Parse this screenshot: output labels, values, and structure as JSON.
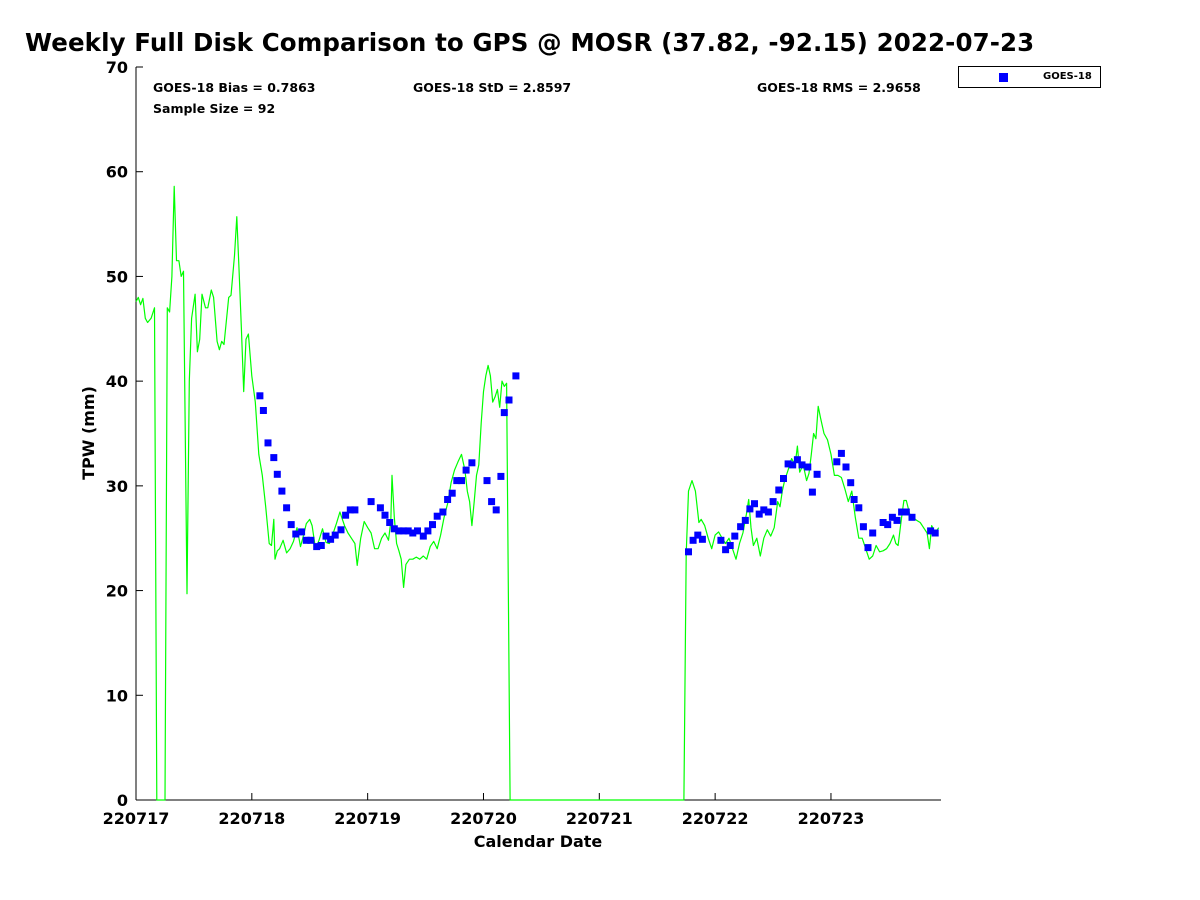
{
  "chart_data": {
    "type": "scatter",
    "title": "Weekly Full Disk Comparison to GPS @ MOSR (37.82, -92.15) 2022-07-23",
    "xlabel": "Calendar Date",
    "ylabel": "TPW (mm)",
    "xlim": [
      0,
      6.95
    ],
    "ylim": [
      0,
      70
    ],
    "x_ticks": [
      0,
      1,
      2,
      3,
      4,
      5,
      6
    ],
    "x_tick_labels": [
      "220717",
      "220718",
      "220719",
      "220720",
      "220721",
      "220722",
      "220723"
    ],
    "y_ticks": [
      0,
      10,
      20,
      30,
      40,
      50,
      60,
      70
    ],
    "y_tick_labels": [
      "0",
      "10",
      "20",
      "30",
      "40",
      "50",
      "60",
      "70"
    ],
    "stats": {
      "bias": "GOES-18 Bias = 0.7863",
      "std": "GOES-18 StD = 2.8597",
      "rms": "GOES-18 RMS = 2.9658",
      "sample_size": "Sample Size = 92"
    },
    "legend": {
      "label": "GOES-18",
      "marker_color": "#0000ff",
      "placement": "top-right outside"
    },
    "series": [
      {
        "name": "GPS",
        "style": "line",
        "color": "#00ff00",
        "points": [
          [
            0.0,
            47.6
          ],
          [
            0.02,
            48.0
          ],
          [
            0.04,
            47.3
          ],
          [
            0.06,
            47.9
          ],
          [
            0.08,
            46.0
          ],
          [
            0.1,
            45.6
          ],
          [
            0.13,
            46.0
          ],
          [
            0.16,
            47.0
          ],
          [
            0.18,
            0
          ],
          [
            0.25,
            0
          ],
          [
            0.27,
            47.0
          ],
          [
            0.29,
            46.6
          ],
          [
            0.31,
            50.0
          ],
          [
            0.33,
            58.6
          ],
          [
            0.35,
            51.5
          ],
          [
            0.37,
            51.5
          ],
          [
            0.39,
            50.0
          ],
          [
            0.41,
            50.5
          ],
          [
            0.44,
            19.7
          ],
          [
            0.46,
            40.0
          ],
          [
            0.48,
            46.0
          ],
          [
            0.51,
            48.3
          ],
          [
            0.53,
            42.8
          ],
          [
            0.55,
            44.0
          ],
          [
            0.57,
            48.3
          ],
          [
            0.6,
            47.0
          ],
          [
            0.62,
            47.0
          ],
          [
            0.65,
            48.7
          ],
          [
            0.67,
            48.0
          ],
          [
            0.7,
            43.8
          ],
          [
            0.72,
            43.0
          ],
          [
            0.74,
            43.8
          ],
          [
            0.76,
            43.5
          ],
          [
            0.8,
            48.0
          ],
          [
            0.82,
            48.2
          ],
          [
            0.85,
            52.0
          ],
          [
            0.87,
            55.7
          ],
          [
            0.89,
            50.5
          ],
          [
            0.91,
            45.0
          ],
          [
            0.93,
            39.0
          ],
          [
            0.95,
            44.0
          ],
          [
            0.97,
            44.5
          ],
          [
            1.0,
            40.5
          ],
          [
            1.03,
            38.0
          ],
          [
            1.06,
            33.0
          ],
          [
            1.09,
            31.0
          ],
          [
            1.12,
            28.0
          ],
          [
            1.15,
            24.5
          ],
          [
            1.17,
            24.3
          ],
          [
            1.19,
            26.8
          ],
          [
            1.2,
            23.0
          ],
          [
            1.22,
            23.8
          ],
          [
            1.24,
            24.0
          ],
          [
            1.27,
            24.8
          ],
          [
            1.3,
            23.6
          ],
          [
            1.33,
            24.0
          ],
          [
            1.36,
            24.7
          ],
          [
            1.39,
            26.0
          ],
          [
            1.42,
            24.2
          ],
          [
            1.44,
            25.0
          ],
          [
            1.47,
            26.4
          ],
          [
            1.5,
            26.8
          ],
          [
            1.52,
            26.2
          ],
          [
            1.55,
            24.0
          ],
          [
            1.58,
            24.8
          ],
          [
            1.61,
            25.9
          ],
          [
            1.64,
            24.6
          ],
          [
            1.67,
            24.5
          ],
          [
            1.7,
            25.4
          ],
          [
            1.73,
            26.4
          ],
          [
            1.76,
            27.5
          ],
          [
            1.8,
            26.2
          ],
          [
            1.83,
            25.5
          ],
          [
            1.86,
            25.0
          ],
          [
            1.89,
            24.5
          ],
          [
            1.91,
            22.4
          ],
          [
            1.94,
            25.0
          ],
          [
            1.97,
            26.6
          ],
          [
            2.0,
            26.0
          ],
          [
            2.03,
            25.5
          ],
          [
            2.06,
            24.0
          ],
          [
            2.09,
            24.0
          ],
          [
            2.12,
            25.0
          ],
          [
            2.15,
            25.5
          ],
          [
            2.18,
            24.8
          ],
          [
            2.2,
            26.6
          ],
          [
            2.21,
            31.0
          ],
          [
            2.23,
            27.0
          ],
          [
            2.25,
            24.5
          ],
          [
            2.27,
            23.8
          ],
          [
            2.29,
            23.0
          ],
          [
            2.31,
            20.3
          ],
          [
            2.33,
            22.5
          ],
          [
            2.36,
            23.0
          ],
          [
            2.39,
            23.0
          ],
          [
            2.42,
            23.2
          ],
          [
            2.45,
            23.0
          ],
          [
            2.48,
            23.3
          ],
          [
            2.51,
            23.0
          ],
          [
            2.54,
            24.2
          ],
          [
            2.57,
            24.7
          ],
          [
            2.6,
            24.0
          ],
          [
            2.63,
            25.3
          ],
          [
            2.66,
            27.0
          ],
          [
            2.69,
            28.3
          ],
          [
            2.72,
            30.3
          ],
          [
            2.75,
            31.5
          ],
          [
            2.78,
            32.3
          ],
          [
            2.81,
            33.0
          ],
          [
            2.84,
            31.5
          ],
          [
            2.86,
            29.5
          ],
          [
            2.88,
            28.5
          ],
          [
            2.9,
            26.2
          ],
          [
            2.92,
            28.5
          ],
          [
            2.94,
            31.0
          ],
          [
            2.96,
            32.0
          ],
          [
            2.98,
            36.0
          ],
          [
            3.0,
            39.0
          ],
          [
            3.02,
            40.5
          ],
          [
            3.04,
            41.5
          ],
          [
            3.06,
            40.5
          ],
          [
            3.08,
            38.0
          ],
          [
            3.1,
            38.5
          ],
          [
            3.12,
            39.2
          ],
          [
            3.14,
            37.5
          ],
          [
            3.16,
            40.0
          ],
          [
            3.18,
            39.5
          ],
          [
            3.2,
            39.8
          ],
          [
            3.23,
            0
          ],
          [
            4.73,
            0
          ],
          [
            4.75,
            23.5
          ],
          [
            4.77,
            29.5
          ],
          [
            4.8,
            30.5
          ],
          [
            4.83,
            29.5
          ],
          [
            4.86,
            26.5
          ],
          [
            4.88,
            26.8
          ],
          [
            4.91,
            26.2
          ],
          [
            4.94,
            25.0
          ],
          [
            4.97,
            24.0
          ],
          [
            5.0,
            25.3
          ],
          [
            5.03,
            25.6
          ],
          [
            5.06,
            25.0
          ],
          [
            5.09,
            24.5
          ],
          [
            5.12,
            25.0
          ],
          [
            5.15,
            24.0
          ],
          [
            5.18,
            23.0
          ],
          [
            5.21,
            24.5
          ],
          [
            5.24,
            25.5
          ],
          [
            5.27,
            27.3
          ],
          [
            5.29,
            28.7
          ],
          [
            5.31,
            26.0
          ],
          [
            5.33,
            24.3
          ],
          [
            5.36,
            25.0
          ],
          [
            5.39,
            23.3
          ],
          [
            5.42,
            25.0
          ],
          [
            5.45,
            25.8
          ],
          [
            5.48,
            25.2
          ],
          [
            5.51,
            26.0
          ],
          [
            5.54,
            28.5
          ],
          [
            5.56,
            28.0
          ],
          [
            5.58,
            29.5
          ],
          [
            5.6,
            30.5
          ],
          [
            5.63,
            31.5
          ],
          [
            5.66,
            32.6
          ],
          [
            5.69,
            32.0
          ],
          [
            5.71,
            33.8
          ],
          [
            5.73,
            31.3
          ],
          [
            5.76,
            32.0
          ],
          [
            5.79,
            30.5
          ],
          [
            5.81,
            31.2
          ],
          [
            5.83,
            33.0
          ],
          [
            5.85,
            35.0
          ],
          [
            5.87,
            34.5
          ],
          [
            5.89,
            37.6
          ],
          [
            5.91,
            36.5
          ],
          [
            5.94,
            35.0
          ],
          [
            5.97,
            34.4
          ],
          [
            6.0,
            33.0
          ],
          [
            6.03,
            31.0
          ],
          [
            6.06,
            31.0
          ],
          [
            6.09,
            30.8
          ],
          [
            6.12,
            29.7
          ],
          [
            6.15,
            28.5
          ],
          [
            6.18,
            29.5
          ],
          [
            6.21,
            27.0
          ],
          [
            6.24,
            25.0
          ],
          [
            6.27,
            25.0
          ],
          [
            6.3,
            24.0
          ],
          [
            6.33,
            23.0
          ],
          [
            6.36,
            23.3
          ],
          [
            6.39,
            24.3
          ],
          [
            6.42,
            23.7
          ],
          [
            6.45,
            23.8
          ],
          [
            6.48,
            24.0
          ],
          [
            6.51,
            24.5
          ],
          [
            6.54,
            25.3
          ],
          [
            6.56,
            24.5
          ],
          [
            6.58,
            24.3
          ],
          [
            6.61,
            27.0
          ],
          [
            6.63,
            28.6
          ],
          [
            6.65,
            28.6
          ],
          [
            6.68,
            27.3
          ],
          [
            6.71,
            27.0
          ],
          [
            6.74,
            26.7
          ],
          [
            6.77,
            26.5
          ],
          [
            6.8,
            26.0
          ],
          [
            6.83,
            25.5
          ],
          [
            6.85,
            24.0
          ],
          [
            6.87,
            26.2
          ],
          [
            6.9,
            25.5
          ],
          [
            6.93,
            26.0
          ]
        ]
      },
      {
        "name": "GOES-18",
        "style": "markers",
        "color": "#0000ff",
        "points": [
          [
            1.07,
            38.6
          ],
          [
            1.1,
            37.2
          ],
          [
            1.14,
            34.1
          ],
          [
            1.19,
            32.7
          ],
          [
            1.22,
            31.1
          ],
          [
            1.26,
            29.5
          ],
          [
            1.3,
            27.9
          ],
          [
            1.34,
            26.3
          ],
          [
            1.38,
            25.4
          ],
          [
            1.43,
            25.6
          ],
          [
            1.47,
            24.8
          ],
          [
            1.51,
            24.8
          ],
          [
            1.56,
            24.2
          ],
          [
            1.6,
            24.3
          ],
          [
            1.64,
            25.2
          ],
          [
            1.68,
            24.9
          ],
          [
            1.72,
            25.3
          ],
          [
            1.77,
            25.8
          ],
          [
            1.81,
            27.2
          ],
          [
            1.85,
            27.7
          ],
          [
            1.89,
            27.7
          ],
          [
            2.03,
            28.5
          ],
          [
            2.11,
            27.9
          ],
          [
            2.15,
            27.2
          ],
          [
            2.19,
            26.5
          ],
          [
            2.23,
            25.9
          ],
          [
            2.27,
            25.7
          ],
          [
            2.31,
            25.7
          ],
          [
            2.35,
            25.7
          ],
          [
            2.39,
            25.5
          ],
          [
            2.43,
            25.7
          ],
          [
            2.48,
            25.2
          ],
          [
            2.52,
            25.7
          ],
          [
            2.56,
            26.3
          ],
          [
            2.6,
            27.1
          ],
          [
            2.65,
            27.5
          ],
          [
            2.69,
            28.7
          ],
          [
            2.73,
            29.3
          ],
          [
            2.77,
            30.5
          ],
          [
            2.81,
            30.5
          ],
          [
            2.85,
            31.5
          ],
          [
            2.9,
            32.2
          ],
          [
            3.03,
            30.5
          ],
          [
            3.07,
            28.5
          ],
          [
            3.11,
            27.7
          ],
          [
            3.15,
            30.9
          ],
          [
            3.18,
            37.0
          ],
          [
            3.22,
            38.2
          ],
          [
            3.28,
            40.5
          ],
          [
            4.77,
            23.7
          ],
          [
            4.81,
            24.8
          ],
          [
            4.85,
            25.3
          ],
          [
            4.89,
            24.9
          ],
          [
            5.05,
            24.8
          ],
          [
            5.09,
            23.9
          ],
          [
            5.13,
            24.3
          ],
          [
            5.17,
            25.2
          ],
          [
            5.22,
            26.1
          ],
          [
            5.26,
            26.7
          ],
          [
            5.3,
            27.8
          ],
          [
            5.34,
            28.3
          ],
          [
            5.38,
            27.3
          ],
          [
            5.42,
            27.7
          ],
          [
            5.46,
            27.5
          ],
          [
            5.5,
            28.5
          ],
          [
            5.55,
            29.6
          ],
          [
            5.59,
            30.7
          ],
          [
            5.63,
            32.1
          ],
          [
            5.67,
            32.0
          ],
          [
            5.71,
            32.5
          ],
          [
            5.75,
            32.0
          ],
          [
            5.8,
            31.8
          ],
          [
            5.84,
            29.4
          ],
          [
            5.88,
            31.1
          ],
          [
            6.05,
            32.3
          ],
          [
            6.09,
            33.1
          ],
          [
            6.13,
            31.8
          ],
          [
            6.17,
            30.3
          ],
          [
            6.2,
            28.7
          ],
          [
            6.24,
            27.9
          ],
          [
            6.28,
            26.1
          ],
          [
            6.32,
            24.1
          ],
          [
            6.36,
            25.5
          ],
          [
            6.45,
            26.5
          ],
          [
            6.49,
            26.3
          ],
          [
            6.53,
            27.0
          ],
          [
            6.57,
            26.7
          ],
          [
            6.61,
            27.5
          ],
          [
            6.65,
            27.5
          ],
          [
            6.7,
            27.0
          ],
          [
            6.86,
            25.7
          ],
          [
            6.9,
            25.5
          ]
        ]
      }
    ]
  }
}
